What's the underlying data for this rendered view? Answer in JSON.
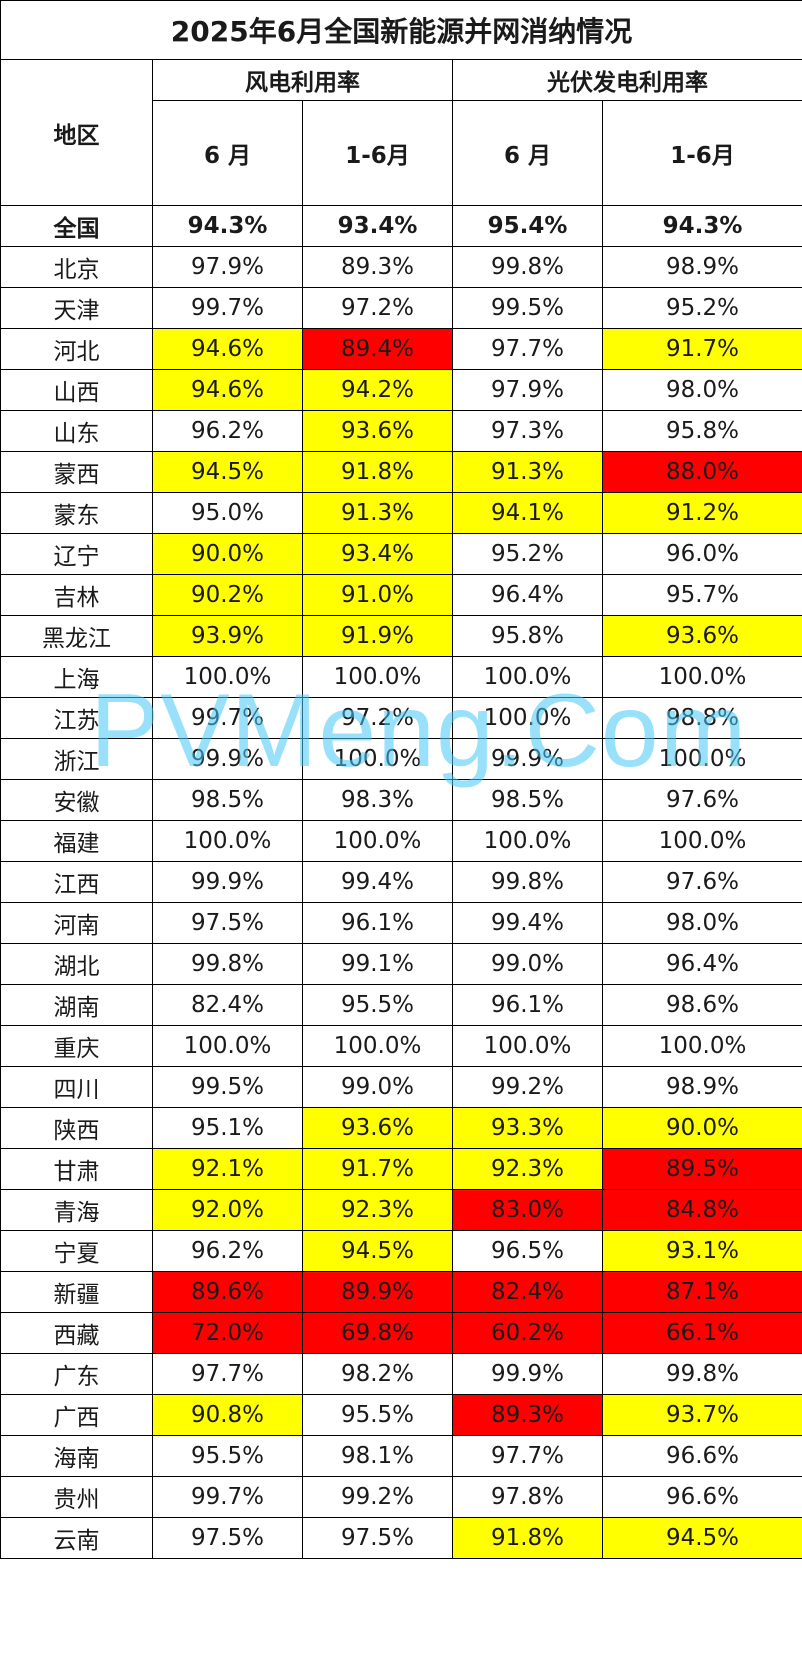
{
  "title": "2025年6月全国新能源并网消纳情况",
  "headers": {
    "region": "地区",
    "wind": "风电利用率",
    "solar": "光伏发电利用率",
    "month": "6 月",
    "ytd": "1-6月"
  },
  "highlight_colors": {
    "yellow": "#ffff00",
    "red": "#ff0000"
  },
  "watermark": "PVMeng.Com",
  "rows": [
    {
      "region": "全国",
      "bold": true,
      "values": [
        "94.3%",
        "93.4%",
        "95.4%",
        "94.3%"
      ],
      "hl": [
        "",
        "",
        "",
        ""
      ]
    },
    {
      "region": "北京",
      "values": [
        "97.9%",
        "89.3%",
        "99.8%",
        "98.9%"
      ],
      "hl": [
        "",
        "",
        "",
        ""
      ]
    },
    {
      "region": "天津",
      "values": [
        "99.7%",
        "97.2%",
        "99.5%",
        "95.2%"
      ],
      "hl": [
        "",
        "",
        "",
        ""
      ]
    },
    {
      "region": "河北",
      "values": [
        "94.6%",
        "89.4%",
        "97.7%",
        "91.7%"
      ],
      "hl": [
        "yellow",
        "red",
        "",
        "yellow"
      ]
    },
    {
      "region": "山西",
      "values": [
        "94.6%",
        "94.2%",
        "97.9%",
        "98.0%"
      ],
      "hl": [
        "yellow",
        "yellow",
        "",
        ""
      ]
    },
    {
      "region": "山东",
      "values": [
        "96.2%",
        "93.6%",
        "97.3%",
        "95.8%"
      ],
      "hl": [
        "",
        "yellow",
        "",
        ""
      ]
    },
    {
      "region": "蒙西",
      "values": [
        "94.5%",
        "91.8%",
        "91.3%",
        "88.0%"
      ],
      "hl": [
        "yellow",
        "yellow",
        "yellow",
        "red"
      ]
    },
    {
      "region": "蒙东",
      "values": [
        "95.0%",
        "91.3%",
        "94.1%",
        "91.2%"
      ],
      "hl": [
        "",
        "yellow",
        "yellow",
        "yellow"
      ]
    },
    {
      "region": "辽宁",
      "values": [
        "90.0%",
        "93.4%",
        "95.2%",
        "96.0%"
      ],
      "hl": [
        "yellow",
        "yellow",
        "",
        ""
      ]
    },
    {
      "region": "吉林",
      "values": [
        "90.2%",
        "91.0%",
        "96.4%",
        "95.7%"
      ],
      "hl": [
        "yellow",
        "yellow",
        "",
        ""
      ]
    },
    {
      "region": "黑龙江",
      "values": [
        "93.9%",
        "91.9%",
        "95.8%",
        "93.6%"
      ],
      "hl": [
        "yellow",
        "yellow",
        "",
        "yellow"
      ]
    },
    {
      "region": "上海",
      "values": [
        "100.0%",
        "100.0%",
        "100.0%",
        "100.0%"
      ],
      "hl": [
        "",
        "",
        "",
        ""
      ]
    },
    {
      "region": "江苏",
      "values": [
        "99.7%",
        "97.2%",
        "100.0%",
        "98.8%"
      ],
      "hl": [
        "",
        "",
        "",
        ""
      ]
    },
    {
      "region": "浙江",
      "values": [
        "99.9%",
        "100.0%",
        "99.9%",
        "100.0%"
      ],
      "hl": [
        "",
        "",
        "",
        ""
      ]
    },
    {
      "region": "安徽",
      "values": [
        "98.5%",
        "98.3%",
        "98.5%",
        "97.6%"
      ],
      "hl": [
        "",
        "",
        "",
        ""
      ]
    },
    {
      "region": "福建",
      "values": [
        "100.0%",
        "100.0%",
        "100.0%",
        "100.0%"
      ],
      "hl": [
        "",
        "",
        "",
        ""
      ]
    },
    {
      "region": "江西",
      "values": [
        "99.9%",
        "99.4%",
        "99.8%",
        "97.6%"
      ],
      "hl": [
        "",
        "",
        "",
        ""
      ]
    },
    {
      "region": "河南",
      "values": [
        "97.5%",
        "96.1%",
        "99.4%",
        "98.0%"
      ],
      "hl": [
        "",
        "",
        "",
        ""
      ]
    },
    {
      "region": "湖北",
      "values": [
        "99.8%",
        "99.1%",
        "99.0%",
        "96.4%"
      ],
      "hl": [
        "",
        "",
        "",
        ""
      ]
    },
    {
      "region": "湖南",
      "values": [
        "82.4%",
        "95.5%",
        "96.1%",
        "98.6%"
      ],
      "hl": [
        "",
        "",
        "",
        ""
      ]
    },
    {
      "region": "重庆",
      "values": [
        "100.0%",
        "100.0%",
        "100.0%",
        "100.0%"
      ],
      "hl": [
        "",
        "",
        "",
        ""
      ]
    },
    {
      "region": "四川",
      "values": [
        "99.5%",
        "99.0%",
        "99.2%",
        "98.9%"
      ],
      "hl": [
        "",
        "",
        "",
        ""
      ]
    },
    {
      "region": "陕西",
      "values": [
        "95.1%",
        "93.6%",
        "93.3%",
        "90.0%"
      ],
      "hl": [
        "",
        "yellow",
        "yellow",
        "yellow"
      ]
    },
    {
      "region": "甘肃",
      "values": [
        "92.1%",
        "91.7%",
        "92.3%",
        "89.5%"
      ],
      "hl": [
        "yellow",
        "yellow",
        "yellow",
        "red"
      ]
    },
    {
      "region": "青海",
      "values": [
        "92.0%",
        "92.3%",
        "83.0%",
        "84.8%"
      ],
      "hl": [
        "yellow",
        "yellow",
        "red",
        "red"
      ]
    },
    {
      "region": "宁夏",
      "values": [
        "96.2%",
        "94.5%",
        "96.5%",
        "93.1%"
      ],
      "hl": [
        "",
        "yellow",
        "",
        "yellow"
      ]
    },
    {
      "region": "新疆",
      "values": [
        "89.6%",
        "89.9%",
        "82.4%",
        "87.1%"
      ],
      "hl": [
        "red",
        "red",
        "red",
        "red"
      ]
    },
    {
      "region": "西藏",
      "values": [
        "72.0%",
        "69.8%",
        "60.2%",
        "66.1%"
      ],
      "hl": [
        "red",
        "red",
        "red",
        "red"
      ]
    },
    {
      "region": "广东",
      "values": [
        "97.7%",
        "98.2%",
        "99.9%",
        "99.8%"
      ],
      "hl": [
        "",
        "",
        "",
        ""
      ]
    },
    {
      "region": "广西",
      "values": [
        "90.8%",
        "95.5%",
        "89.3%",
        "93.7%"
      ],
      "hl": [
        "yellow",
        "",
        "red",
        "yellow"
      ]
    },
    {
      "region": "海南",
      "values": [
        "95.5%",
        "98.1%",
        "97.7%",
        "96.6%"
      ],
      "hl": [
        "",
        "",
        "",
        ""
      ]
    },
    {
      "region": "贵州",
      "values": [
        "99.7%",
        "99.2%",
        "97.8%",
        "96.6%"
      ],
      "hl": [
        "",
        "",
        "",
        ""
      ]
    },
    {
      "region": "云南",
      "values": [
        "97.5%",
        "97.5%",
        "91.8%",
        "94.5%"
      ],
      "hl": [
        "",
        "",
        "yellow",
        "yellow"
      ]
    }
  ]
}
